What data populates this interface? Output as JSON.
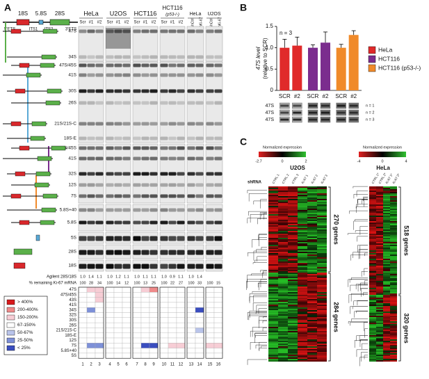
{
  "panel_labels": [
    "A",
    "B",
    "C"
  ],
  "panel_a": {
    "precursor_labels": [
      "18S",
      "5.8S",
      "28S"
    ],
    "spacer_labels": [
      "5'ETS",
      "ITS1",
      "ITS2",
      "3'ETS"
    ],
    "cell_lines": [
      {
        "name": "HeLa",
        "lanes": [
          "Scr",
          "#1",
          "#2"
        ]
      },
      {
        "name": "U2OS",
        "lanes": [
          "Scr",
          "#1",
          "#2"
        ]
      },
      {
        "name": "HCT116",
        "lanes": [
          "Scr",
          "#1",
          "#2"
        ]
      },
      {
        "name": "HCT116",
        "subname": "(p53-/-)",
        "lanes": [
          "Scr",
          "#1",
          "#2"
        ]
      },
      {
        "name": "HeLa",
        "lanes": [
          "shCtrl",
          "shKi-67"
        ]
      },
      {
        "name": "U2OS",
        "lanes": [
          "shCtrl",
          "shKi-67"
        ]
      }
    ],
    "bands": [
      "47S",
      "34S",
      "47S/45S",
      "41S",
      "30S",
      "26S",
      "21S/21S-C",
      "18S-E",
      "47S/45S",
      "41S",
      "32S",
      "12S",
      "7S",
      "5.8S+40",
      "5.8S",
      "5S",
      "28S",
      "18S"
    ],
    "agilent_label": "Agilent 28S/18S",
    "agilent": [
      "1.0",
      "1.4",
      "1.1",
      "1.0",
      "1.2",
      "1.1",
      "1.0",
      "1.1",
      "1.1",
      "1.0",
      "0.9",
      "1.1",
      "1.0",
      "1.4"
    ],
    "ki67_label": "% remaining Ki-67 mRNA",
    "ki67": [
      100,
      28,
      34,
      100,
      14,
      12,
      100,
      13,
      25,
      100,
      22,
      27,
      100,
      33,
      100,
      15
    ],
    "heat_rows": [
      "47S",
      "47S/45S",
      "43S",
      "41S",
      "34S",
      "32S",
      "30S",
      "26S",
      "21S/21S-C",
      "18S-E",
      "12S",
      "7S",
      "5.8S+40",
      "5S"
    ],
    "heat_levels": [
      [
        3,
        2,
        2,
        3,
        3,
        3,
        3,
        2,
        1,
        3,
        3,
        3,
        3,
        3,
        3,
        3
      ],
      [
        3,
        3,
        2,
        3,
        3,
        3,
        3,
        3,
        3,
        3,
        3,
        3,
        3,
        3,
        3,
        3
      ],
      [
        3,
        3,
        2,
        3,
        3,
        3,
        3,
        3,
        3,
        3,
        3,
        3,
        3,
        3,
        3,
        3
      ],
      [
        3,
        3,
        3,
        3,
        3,
        3,
        3,
        3,
        3,
        3,
        3,
        3,
        3,
        3,
        3,
        3
      ],
      [
        3,
        5,
        3,
        3,
        3,
        3,
        3,
        3,
        3,
        3,
        3,
        3,
        3,
        6,
        3,
        3
      ],
      [
        3,
        3,
        3,
        3,
        3,
        3,
        3,
        3,
        3,
        3,
        3,
        3,
        3,
        3,
        3,
        3
      ],
      [
        3,
        3,
        3,
        3,
        3,
        3,
        3,
        3,
        3,
        3,
        3,
        3,
        3,
        3,
        3,
        3
      ],
      [
        3,
        3,
        3,
        3,
        3,
        3,
        3,
        3,
        3,
        3,
        3,
        3,
        3,
        3,
        3,
        3
      ],
      [
        3,
        3,
        3,
        3,
        3,
        3,
        3,
        3,
        3,
        3,
        3,
        3,
        3,
        4,
        3,
        3
      ],
      [
        3,
        3,
        3,
        3,
        3,
        3,
        3,
        3,
        3,
        3,
        3,
        3,
        3,
        3,
        3,
        3
      ],
      [
        3,
        3,
        3,
        3,
        3,
        3,
        3,
        3,
        3,
        3,
        3,
        3,
        3,
        3,
        3,
        3
      ],
      [
        3,
        5,
        5,
        3,
        3,
        3,
        3,
        6,
        6,
        3,
        2,
        2,
        3,
        3,
        2,
        2
      ],
      [
        3,
        3,
        3,
        3,
        3,
        3,
        3,
        3,
        3,
        3,
        3,
        3,
        3,
        3,
        3,
        3
      ],
      [
        3,
        3,
        3,
        3,
        3,
        3,
        3,
        3,
        3,
        3,
        3,
        3,
        3,
        3,
        3,
        3
      ]
    ],
    "legend": [
      {
        "label": "> 400%",
        "color": "#d7191c"
      },
      {
        "label": "200-400%",
        "color": "#ef8a8a"
      },
      {
        "label": "150-200%",
        "color": "#f7cdd5"
      },
      {
        "label": "67-150%",
        "color": "#ffffff"
      },
      {
        "label": "50-67%",
        "color": "#b9c4ea"
      },
      {
        "label": "25-50%",
        "color": "#7d90d8"
      },
      {
        "label": "< 25%",
        "color": "#3a4dbf"
      }
    ],
    "lane_numbers": [
      1,
      2,
      3,
      4,
      5,
      6,
      7,
      8,
      9,
      10,
      11,
      12,
      13,
      14,
      15,
      16
    ]
  },
  "chart_data": {
    "type": "bar",
    "annotation": "n = 3",
    "ylabel": [
      "47S level",
      "(relative to SCR)"
    ],
    "categories": [
      "SCR",
      "#2"
    ],
    "series": [
      {
        "name": "HeLa",
        "color": "#e02a2a",
        "values": [
          1.0,
          1.05
        ],
        "errors": [
          0.2,
          0.2
        ]
      },
      {
        "name": "HCT116",
        "color": "#7b2d8e",
        "values": [
          1.0,
          1.12
        ],
        "errors": [
          0.07,
          0.25
        ]
      },
      {
        "name": "HCT116 (p53-/-)",
        "color": "#f08a2a",
        "values": [
          1.0,
          1.3
        ],
        "errors": [
          0.08,
          0.1
        ]
      }
    ],
    "ylim": [
      0,
      1.5
    ],
    "yticks": [
      0,
      0.5,
      {
        "value": 1.0,
        "label": "1.0"
      },
      1.5
    ],
    "blot_rows": [
      "47S",
      "47S",
      "47S"
    ],
    "blot_n": [
      "n = 1",
      "n = 2",
      "n = 3"
    ]
  },
  "panel_c": {
    "row_label": "shRNA",
    "heatmaps": [
      {
        "cell_line": "U2OS",
        "scale_title": "Normalized expression",
        "scale_ticks": [
          "-2.7",
          "0",
          "2"
        ],
        "columns": [
          "CTRL 1",
          "CTRL 2",
          "CTRL 3",
          "Ki-67 1",
          "Ki-67 2",
          "Ki-67 3"
        ],
        "clusters": [
          "270 genes",
          "284 genes"
        ]
      },
      {
        "cell_line": "HeLa",
        "scale_title": "Normalized expression",
        "scale_ticks": [
          "-4",
          "0",
          "4"
        ],
        "columns": [
          "CTRL 1*",
          "CTRL 2*",
          "Ki-67 1*",
          "Ki-67 2*"
        ],
        "clusters": [
          "518 genes",
          "320 genes"
        ]
      }
    ]
  }
}
